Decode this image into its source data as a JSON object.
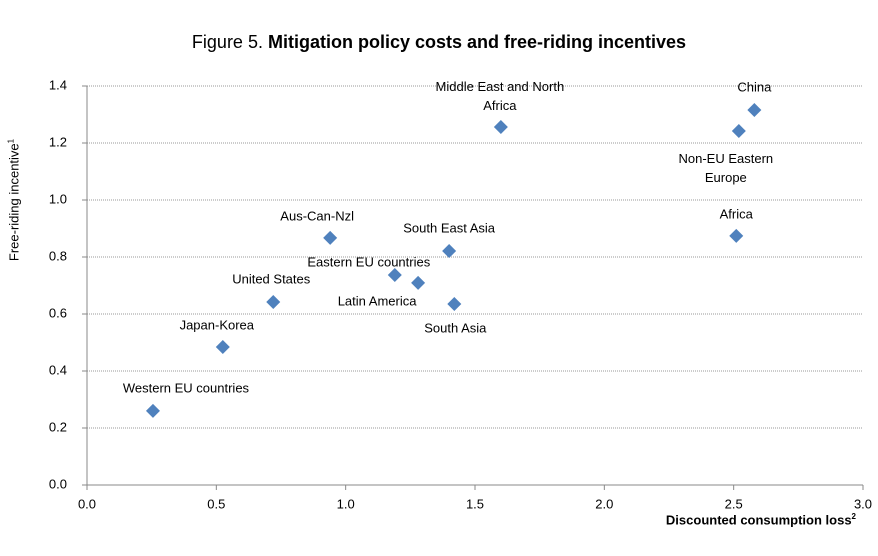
{
  "chart_data": {
    "type": "scatter",
    "title_prefix": "Figure 5.",
    "title": "Mitigation policy costs and free-riding incentives",
    "xlabel": "Discounted consumption loss",
    "xlabel_note": "2",
    "ylabel": "Free-riding incentive",
    "ylabel_note": "1",
    "color": "#4f81bd",
    "grid": true,
    "xlim": [
      0,
      3
    ],
    "ylim": [
      0,
      1.4
    ],
    "xticks": [
      {
        "value": 0,
        "label": "0.0"
      },
      0.5,
      {
        "value": 1,
        "label": "1.0"
      },
      1.5,
      {
        "value": 2,
        "label": "2.0"
      },
      2.5,
      {
        "value": 3,
        "label": "3.0"
      }
    ],
    "yticks": [
      {
        "value": 0,
        "label": "0.0"
      },
      0.2,
      0.4,
      0.6,
      0.8,
      {
        "value": 1,
        "label": "1.0"
      },
      1.2,
      1.4
    ],
    "labels": [
      "Western EU countries",
      "Japan-Korea",
      "United States",
      "Aus-Can-Nzl",
      "Eastern EU countries",
      "Latin America",
      "South East Asia",
      "South Asia",
      "Middle East and North Africa",
      "Non-EU Eastern Europe",
      "China",
      "Africa"
    ],
    "x": [
      0.255,
      0.525,
      0.72,
      0.94,
      1.19,
      1.28,
      1.4,
      1.42,
      1.6,
      2.52,
      2.58,
      2.51
    ],
    "y": [
      0.26,
      0.484,
      0.642,
      0.867,
      0.737,
      0.709,
      0.821,
      0.635,
      1.256,
      1.242,
      1.316,
      0.874
    ]
  }
}
